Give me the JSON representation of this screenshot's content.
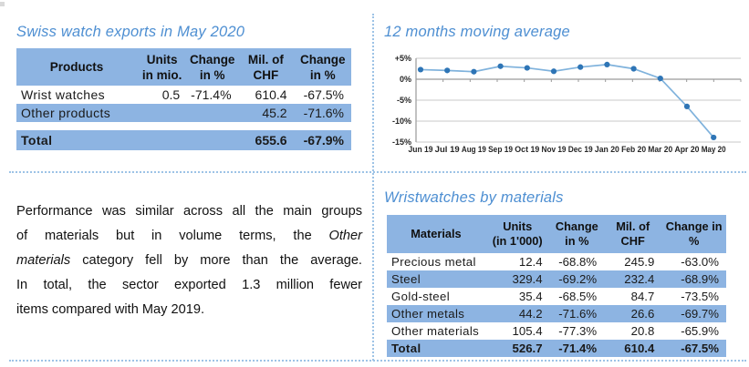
{
  "top_left": {
    "title": "Swiss watch exports in May 2020",
    "table": {
      "headers": [
        [
          "Products"
        ],
        [
          "Units",
          "in mio."
        ],
        [
          "Change",
          "in %"
        ],
        [
          "Mil. of",
          "CHF"
        ],
        [
          "Change",
          "in %"
        ]
      ],
      "rows": [
        {
          "label": "Wrist watches",
          "cells": [
            "0.5",
            "-71.4%",
            "610.4",
            "-67.5%"
          ],
          "shade": false
        },
        {
          "label": "Other products",
          "cells": [
            "",
            "",
            "45.2",
            "-71.6%"
          ],
          "shade": true
        },
        {
          "spacer": true
        },
        {
          "label": "Total",
          "cells": [
            "",
            "",
            "655.6",
            "-67.9%"
          ],
          "shade": true,
          "bold": true
        }
      ]
    }
  },
  "top_right": {
    "title": "12 months moving average"
  },
  "chart_data": {
    "type": "line",
    "title": "12 months moving average",
    "x": [
      "Jun 19",
      "Jul 19",
      "Aug 19",
      "Sep 19",
      "Oct 19",
      "Nov 19",
      "Dec 19",
      "Jan 20",
      "Feb 20",
      "Mar 20",
      "Apr 20",
      "May 20"
    ],
    "values": [
      2.3,
      2.1,
      1.8,
      3.1,
      2.7,
      1.9,
      2.9,
      3.5,
      2.5,
      0.2,
      -6.5,
      -13.9
    ],
    "unit": "%",
    "ylim": [
      -15,
      5
    ],
    "ytick_labels": [
      "+5%",
      "0%",
      "-5%",
      "-10%",
      "-15%"
    ],
    "ytick_values": [
      5,
      0,
      -5,
      -10,
      -15
    ],
    "grid": true,
    "legend": "none",
    "line_color": "#7FB2DC",
    "marker_color": "#2E75B6",
    "gridline_color": "#C9C9C9",
    "axis_color": "#9A9A9A",
    "label_color": "#262626"
  },
  "bottom_left": {
    "paragraph_lines": [
      {
        "text": "Performance was similar across all the main groups",
        "justify": true
      },
      {
        "text": "of materials but in volume terms, the *Other*",
        "justify": true
      },
      {
        "text": "*materials* category fell by more than the average.",
        "justify": true
      },
      {
        "text": "In total, the sector exported 1.3 million fewer",
        "justify": true
      },
      {
        "text": "items compared with May 2019.",
        "justify": false
      }
    ]
  },
  "bottom_right": {
    "title": "Wristwatches by materials",
    "table": {
      "headers": [
        [
          "Materials"
        ],
        [
          "Units",
          "(in 1'000)"
        ],
        [
          "Change",
          "in %"
        ],
        [
          "Mil. of",
          "CHF"
        ],
        [
          "Change in",
          "%"
        ]
      ],
      "rows": [
        {
          "label": "Precious metal",
          "cells": [
            "12.4",
            "-68.8%",
            "245.9",
            "-63.0%"
          ],
          "shade": false
        },
        {
          "label": "Steel",
          "cells": [
            "329.4",
            "-69.2%",
            "232.4",
            "-68.9%"
          ],
          "shade": true
        },
        {
          "label": "Gold-steel",
          "cells": [
            "35.4",
            "-68.5%",
            "84.7",
            "-73.5%"
          ],
          "shade": false
        },
        {
          "label": "Other metals",
          "cells": [
            "44.2",
            "-71.6%",
            "26.6",
            "-69.7%"
          ],
          "shade": true
        },
        {
          "label": "Other materials",
          "cells": [
            "105.4",
            "-77.3%",
            "20.8",
            "-65.9%"
          ],
          "shade": false
        },
        {
          "label": "Total",
          "cells": [
            "526.7",
            "-71.4%",
            "610.4",
            "-67.5%"
          ],
          "shade": true,
          "bold": true
        }
      ]
    }
  },
  "colors": {
    "table_blue": "#8DB4E2",
    "title_blue": "#4E8FD2",
    "divider_blue": "#9DC3E6"
  }
}
